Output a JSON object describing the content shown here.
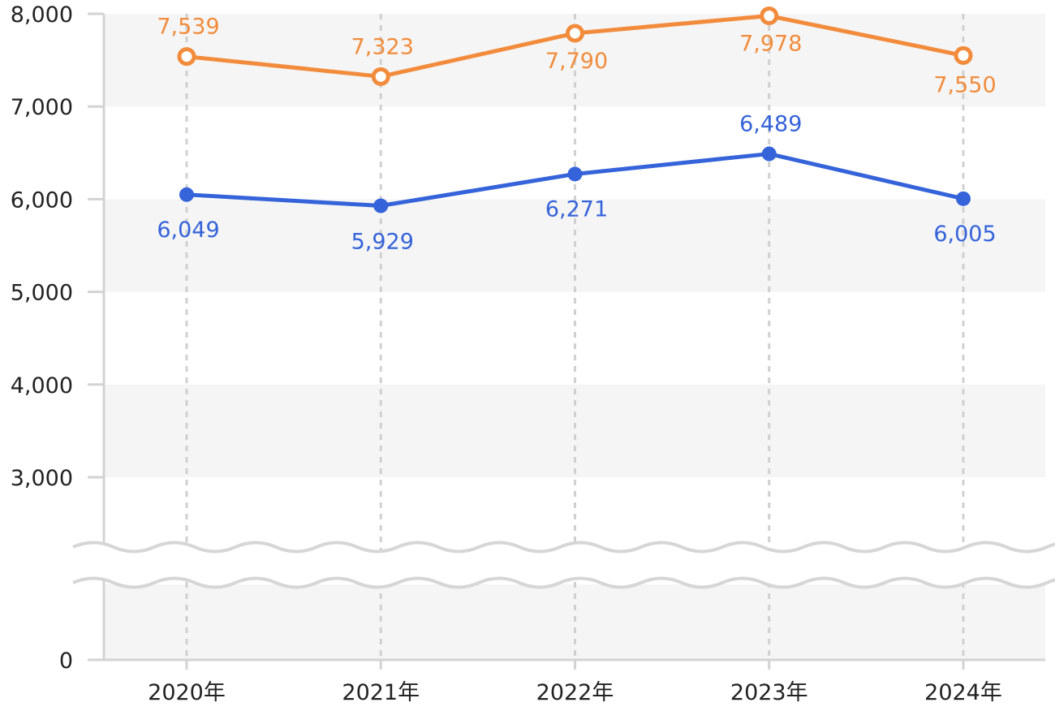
{
  "chart_data": {
    "type": "line",
    "categories": [
      "2020年",
      "2021年",
      "2022年",
      "2023年",
      "2024年"
    ],
    "series": [
      {
        "values": [
          7539,
          7323,
          7790,
          7978,
          7550
        ],
        "labels": [
          "7,539",
          "7,323",
          "7,790",
          "7,978",
          "7,550"
        ],
        "color": "#f28c3c",
        "marker": "hollow-circle"
      },
      {
        "values": [
          6049,
          5929,
          6271,
          6489,
          6005
        ],
        "labels": [
          "6,049",
          "5,929",
          "6,271",
          "6,489",
          "6,005"
        ],
        "color": "#3563d9",
        "marker": "filled-circle"
      }
    ],
    "y_ticks": [
      {
        "value": 8000,
        "label": "8,000"
      },
      {
        "value": 7000,
        "label": "7,000"
      },
      {
        "value": 6000,
        "label": "6,000"
      },
      {
        "value": 5000,
        "label": "5,000"
      },
      {
        "value": 4000,
        "label": "4,000"
      },
      {
        "value": 3000,
        "label": "3,000"
      },
      {
        "value": 0,
        "label": "0"
      }
    ],
    "ylim": [
      0,
      8000
    ],
    "axis_break": {
      "from": 0,
      "to": 3000
    },
    "grid": "alternating horizontal bands, dashed vertical lines",
    "title": "",
    "xlabel": "",
    "ylabel": ""
  }
}
